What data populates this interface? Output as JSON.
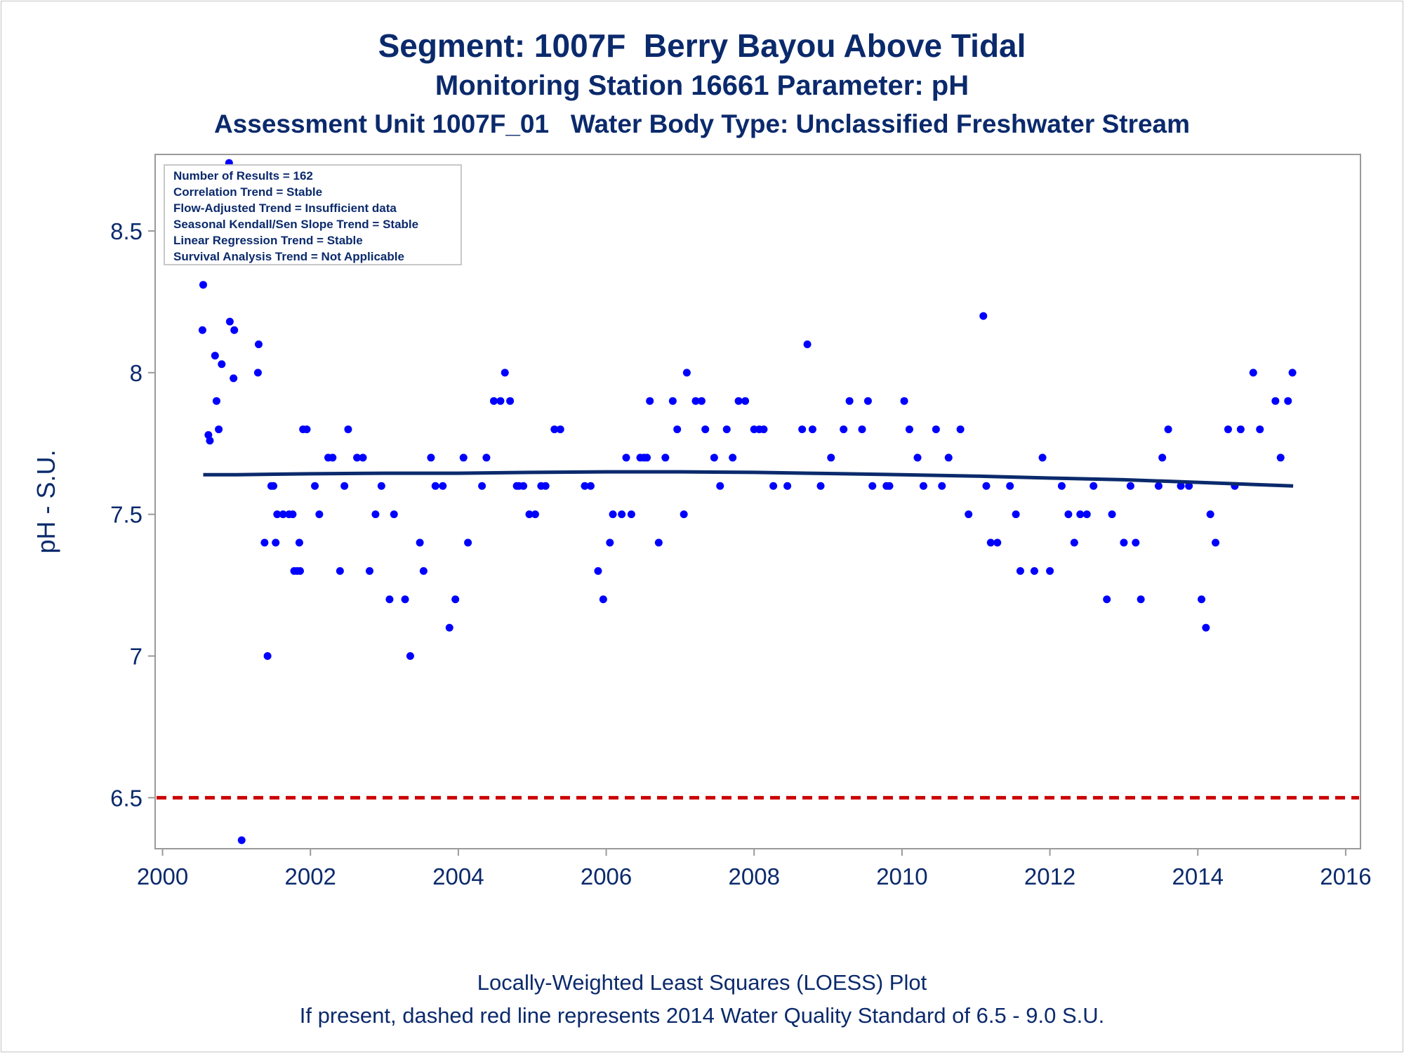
{
  "title": "Segment: 1007F  Berry Bayou Above Tidal",
  "subtitle": "Monitoring Station 16661 Parameter: pH",
  "subtitle2": "Assessment Unit 1007F_01   Water Body Type: Unclassified Freshwater Stream",
  "footer": {
    "line1": "Locally-Weighted Least Squares (LOESS) Plot",
    "line2": "If present, dashed red line represents 2014 Water Quality Standard of 6.5 - 9.0 S.U."
  },
  "stats_box": [
    "Number of Results = 162",
    "Correlation Trend = Stable",
    "Flow-Adjusted Trend = Insufficient data",
    "Seasonal Kendall/Sen Slope Trend = Stable",
    "Linear Regression Trend = Stable",
    "Survival Analysis Trend = Not Applicable"
  ],
  "colors": {
    "points": "#0000ff",
    "loess": "#0b2a6c",
    "standard": "#cc0000",
    "text": "#0b2a6c",
    "frame": "#9a9a9a"
  },
  "chart_data": {
    "type": "scatter",
    "xlabel": "",
    "ylabel": "pH - S.U.",
    "xlim": [
      1999.9,
      2016.2
    ],
    "ylim": [
      6.32,
      8.77
    ],
    "xticks": [
      2000,
      2002,
      2004,
      2006,
      2008,
      2010,
      2012,
      2014,
      2016
    ],
    "yticks": [
      6.5,
      7,
      7.5,
      8,
      8.5
    ],
    "ytick_labels": [
      "6.5",
      "7",
      "7.5",
      "8",
      "8.5"
    ],
    "grid": false,
    "legend": "none",
    "points": [
      [
        2000.54,
        8.15
      ],
      [
        2000.55,
        8.31
      ],
      [
        2000.62,
        7.78
      ],
      [
        2000.64,
        7.76
      ],
      [
        2000.71,
        8.06
      ],
      [
        2000.73,
        7.9
      ],
      [
        2000.76,
        7.8
      ],
      [
        2000.8,
        8.03
      ],
      [
        2000.9,
        8.74
      ],
      [
        2000.91,
        8.18
      ],
      [
        2000.96,
        7.98
      ],
      [
        2000.97,
        8.15
      ],
      [
        2001.07,
        6.35
      ],
      [
        2001.29,
        8.0
      ],
      [
        2001.3,
        8.1
      ],
      [
        2001.38,
        7.4
      ],
      [
        2001.42,
        7.0
      ],
      [
        2001.47,
        7.6
      ],
      [
        2001.5,
        7.6
      ],
      [
        2001.53,
        7.4
      ],
      [
        2001.55,
        7.5
      ],
      [
        2001.63,
        7.5
      ],
      [
        2001.71,
        7.5
      ],
      [
        2001.76,
        7.5
      ],
      [
        2001.78,
        7.3
      ],
      [
        2001.82,
        7.3
      ],
      [
        2001.85,
        7.4
      ],
      [
        2001.86,
        7.3
      ],
      [
        2001.9,
        7.8
      ],
      [
        2001.95,
        7.8
      ],
      [
        2002.06,
        7.6
      ],
      [
        2002.12,
        7.5
      ],
      [
        2002.24,
        7.7
      ],
      [
        2002.3,
        7.7
      ],
      [
        2002.4,
        7.3
      ],
      [
        2002.46,
        7.6
      ],
      [
        2002.51,
        7.8
      ],
      [
        2002.63,
        7.7
      ],
      [
        2002.71,
        7.7
      ],
      [
        2002.8,
        7.3
      ],
      [
        2002.88,
        7.5
      ],
      [
        2002.96,
        7.6
      ],
      [
        2003.07,
        7.2
      ],
      [
        2003.13,
        7.5
      ],
      [
        2003.28,
        7.2
      ],
      [
        2003.35,
        7.0
      ],
      [
        2003.48,
        7.4
      ],
      [
        2003.53,
        7.3
      ],
      [
        2003.63,
        7.7
      ],
      [
        2003.69,
        7.6
      ],
      [
        2003.79,
        7.6
      ],
      [
        2003.88,
        7.1
      ],
      [
        2003.96,
        7.2
      ],
      [
        2004.07,
        7.7
      ],
      [
        2004.13,
        7.4
      ],
      [
        2004.32,
        7.6
      ],
      [
        2004.38,
        7.7
      ],
      [
        2004.48,
        7.9
      ],
      [
        2004.57,
        7.9
      ],
      [
        2004.63,
        8.0
      ],
      [
        2004.7,
        7.9
      ],
      [
        2004.79,
        7.6
      ],
      [
        2004.82,
        7.6
      ],
      [
        2004.88,
        7.6
      ],
      [
        2004.96,
        7.5
      ],
      [
        2005.04,
        7.5
      ],
      [
        2005.12,
        7.6
      ],
      [
        2005.18,
        7.6
      ],
      [
        2005.3,
        7.8
      ],
      [
        2005.38,
        7.8
      ],
      [
        2005.71,
        7.6
      ],
      [
        2005.79,
        7.6
      ],
      [
        2005.89,
        7.3
      ],
      [
        2005.96,
        7.2
      ],
      [
        2006.05,
        7.4
      ],
      [
        2006.09,
        7.5
      ],
      [
        2006.21,
        7.5
      ],
      [
        2006.27,
        7.7
      ],
      [
        2006.34,
        7.5
      ],
      [
        2006.46,
        7.7
      ],
      [
        2006.51,
        7.7
      ],
      [
        2006.55,
        7.7
      ],
      [
        2006.59,
        7.9
      ],
      [
        2006.71,
        7.4
      ],
      [
        2006.8,
        7.7
      ],
      [
        2006.9,
        7.9
      ],
      [
        2006.96,
        7.8
      ],
      [
        2007.05,
        7.5
      ],
      [
        2007.09,
        8.0
      ],
      [
        2007.21,
        7.9
      ],
      [
        2007.29,
        7.9
      ],
      [
        2007.34,
        7.8
      ],
      [
        2007.46,
        7.7
      ],
      [
        2007.54,
        7.6
      ],
      [
        2007.63,
        7.8
      ],
      [
        2007.71,
        7.7
      ],
      [
        2007.79,
        7.9
      ],
      [
        2007.88,
        7.9
      ],
      [
        2008.0,
        7.8
      ],
      [
        2008.07,
        7.8
      ],
      [
        2008.13,
        7.8
      ],
      [
        2008.26,
        7.6
      ],
      [
        2008.45,
        7.6
      ],
      [
        2008.65,
        7.8
      ],
      [
        2008.72,
        8.1
      ],
      [
        2008.79,
        7.8
      ],
      [
        2008.9,
        7.6
      ],
      [
        2009.04,
        7.7
      ],
      [
        2009.21,
        7.8
      ],
      [
        2009.29,
        7.9
      ],
      [
        2009.46,
        7.8
      ],
      [
        2009.54,
        7.9
      ],
      [
        2009.6,
        7.6
      ],
      [
        2009.79,
        7.6
      ],
      [
        2009.83,
        7.6
      ],
      [
        2010.03,
        7.9
      ],
      [
        2010.1,
        7.8
      ],
      [
        2010.21,
        7.7
      ],
      [
        2010.29,
        7.6
      ],
      [
        2010.46,
        7.8
      ],
      [
        2010.54,
        7.6
      ],
      [
        2010.63,
        7.7
      ],
      [
        2010.79,
        7.8
      ],
      [
        2010.9,
        7.5
      ],
      [
        2011.1,
        8.2
      ],
      [
        2011.14,
        7.6
      ],
      [
        2011.2,
        7.4
      ],
      [
        2011.29,
        7.4
      ],
      [
        2011.46,
        7.6
      ],
      [
        2011.54,
        7.5
      ],
      [
        2011.6,
        7.3
      ],
      [
        2011.79,
        7.3
      ],
      [
        2011.9,
        7.7
      ],
      [
        2012.0,
        7.3
      ],
      [
        2012.16,
        7.6
      ],
      [
        2012.25,
        7.5
      ],
      [
        2012.33,
        7.4
      ],
      [
        2012.41,
        7.5
      ],
      [
        2012.5,
        7.5
      ],
      [
        2012.59,
        7.6
      ],
      [
        2012.77,
        7.2
      ],
      [
        2012.84,
        7.5
      ],
      [
        2013.0,
        7.4
      ],
      [
        2013.09,
        7.6
      ],
      [
        2013.16,
        7.4
      ],
      [
        2013.23,
        7.2
      ],
      [
        2013.47,
        7.6
      ],
      [
        2013.52,
        7.7
      ],
      [
        2013.6,
        7.8
      ],
      [
        2013.77,
        7.6
      ],
      [
        2013.88,
        7.6
      ],
      [
        2014.05,
        7.2
      ],
      [
        2014.11,
        7.1
      ],
      [
        2014.17,
        7.5
      ],
      [
        2014.24,
        7.4
      ],
      [
        2014.41,
        7.8
      ],
      [
        2014.5,
        7.6
      ],
      [
        2014.58,
        7.8
      ],
      [
        2014.75,
        8.0
      ],
      [
        2014.84,
        7.8
      ],
      [
        2015.05,
        7.9
      ],
      [
        2015.12,
        7.7
      ],
      [
        2015.22,
        7.9
      ],
      [
        2015.28,
        8.0
      ]
    ],
    "loess": {
      "x": [
        2000.55,
        2001.0,
        2002.0,
        2003.0,
        2004.0,
        2005.0,
        2006.0,
        2007.0,
        2008.0,
        2009.0,
        2010.0,
        2011.0,
        2012.0,
        2013.0,
        2014.0,
        2015.29
      ],
      "y": [
        7.64,
        7.64,
        7.643,
        7.645,
        7.645,
        7.648,
        7.65,
        7.65,
        7.648,
        7.644,
        7.64,
        7.635,
        7.628,
        7.622,
        7.613,
        7.6
      ]
    },
    "standard_line": {
      "y": 6.5,
      "style": "dashed"
    }
  }
}
